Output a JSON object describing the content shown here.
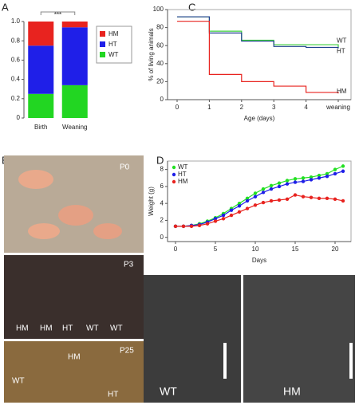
{
  "panels": {
    "a": "A",
    "b": "B",
    "c": "C",
    "d": "D",
    "e": "E"
  },
  "chart_data": [
    {
      "type": "bar",
      "stacked": true,
      "annotation": "***",
      "categories": [
        "Birth",
        "Weaning"
      ],
      "series": [
        {
          "name": "HM",
          "color": "#e8231f",
          "values": [
            0.25,
            0.06
          ]
        },
        {
          "name": "HT",
          "color": "#1f1fe8",
          "values": [
            0.5,
            0.6
          ]
        },
        {
          "name": "WT",
          "color": "#22d622",
          "values": [
            0.25,
            0.34
          ]
        }
      ],
      "ylim": [
        0,
        1
      ],
      "yticks": [
        0,
        0.2,
        0.4,
        0.6,
        0.8,
        {
          "value": 1,
          "label": "1.0"
        }
      ]
    },
    {
      "type": "line",
      "step": true,
      "xlabel": "Age (days)",
      "ylabel": "% of living animals",
      "categories": [
        "0",
        "1",
        "2",
        "3",
        "4",
        "weaning"
      ],
      "series": [
        {
          "name": "WT",
          "color": "#3ccf3c",
          "values": [
            92,
            76,
            66,
            61,
            61,
            58
          ]
        },
        {
          "name": "HT",
          "color": "#1f3f8f",
          "values": [
            92,
            74,
            65,
            59,
            58,
            57
          ]
        },
        {
          "name": "HM",
          "color": "#e8231f",
          "values": [
            87,
            28,
            20,
            15,
            8,
            7
          ]
        }
      ],
      "ylim": [
        0,
        100
      ],
      "yticks": [
        0,
        20,
        40,
        60,
        80,
        100
      ]
    },
    {
      "type": "line",
      "markers": true,
      "xlabel": "Days",
      "ylabel": "Weight (g)",
      "x": [
        0,
        1,
        2,
        3,
        4,
        5,
        6,
        7,
        8,
        9,
        10,
        11,
        12,
        13,
        14,
        15,
        16,
        17,
        18,
        19,
        20,
        21
      ],
      "series": [
        {
          "name": "WT",
          "color": "#22e022",
          "values": [
            1.3,
            1.3,
            1.4,
            1.6,
            1.9,
            2.3,
            2.8,
            3.4,
            4.0,
            4.6,
            5.2,
            5.7,
            6.1,
            6.4,
            6.7,
            6.9,
            7.0,
            7.1,
            7.3,
            7.5,
            8.0,
            8.4
          ]
        },
        {
          "name": "HT",
          "color": "#1f1fe8",
          "values": [
            1.3,
            1.3,
            1.4,
            1.5,
            1.8,
            2.2,
            2.6,
            3.2,
            3.7,
            4.3,
            4.8,
            5.3,
            5.7,
            6.0,
            6.3,
            6.5,
            6.6,
            6.8,
            7.0,
            7.2,
            7.5,
            7.8
          ]
        },
        {
          "name": "HM",
          "color": "#e8231f",
          "values": [
            1.3,
            1.3,
            1.3,
            1.4,
            1.6,
            1.9,
            2.2,
            2.6,
            3.0,
            3.4,
            3.8,
            4.1,
            4.3,
            4.4,
            4.5,
            5.0,
            4.8,
            4.7,
            4.6,
            4.6,
            4.5,
            4.3
          ]
        }
      ],
      "xlim": [
        -1,
        22
      ],
      "xticks": [
        0,
        5,
        10,
        15,
        20
      ],
      "ylim": [
        -0.5,
        9
      ],
      "yticks": [
        0,
        2,
        4,
        6,
        8
      ],
      "legend": "upper-left"
    }
  ],
  "photos": {
    "p0": {
      "tag": "P0"
    },
    "p3": {
      "tag": "P3",
      "labels": [
        "HM",
        "HM",
        "HT",
        "WT",
        "WT"
      ]
    },
    "p25": {
      "tag": "P25",
      "labels": [
        "HM",
        "WT",
        "HT"
      ]
    },
    "xray": {
      "labels": [
        "WT",
        "HM"
      ]
    }
  }
}
